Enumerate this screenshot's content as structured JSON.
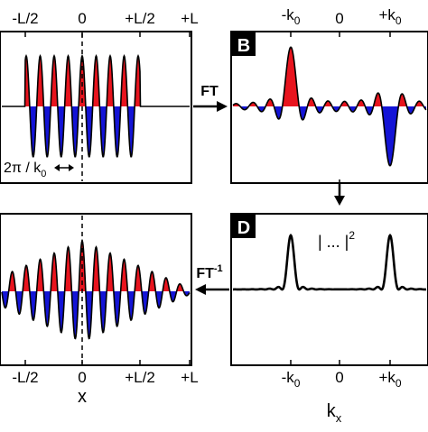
{
  "colors": {
    "positive": "#e8141e",
    "negative": "#1414d6",
    "line": "#000000"
  },
  "top_axis_left": {
    "minus_half": "-L/2",
    "zero": "0",
    "plus_half": "+L/2",
    "plus_full": "+L"
  },
  "top_axis_right": {
    "minus_k0": "-k",
    "minus_k0_sub": "0",
    "zero": "0",
    "plus_k0": "+k",
    "plus_k0_sub": "0"
  },
  "bottom_axis_left": {
    "minus_half": "-L/2",
    "zero": "0",
    "plus_half": "+L/2",
    "plus_full": "+L",
    "xlabel": "x"
  },
  "bottom_axis_right": {
    "minus_k0": "-k",
    "minus_k0_sub": "0",
    "zero": "0",
    "plus_k0": "+k",
    "plus_k0_sub": "0",
    "xlabel": "k",
    "xlabel_sub": "x"
  },
  "panels": {
    "B": "B",
    "D": "D"
  },
  "arrows": {
    "ft": "FT",
    "ift": "FT",
    "ift_sup": "-1"
  },
  "annotations": {
    "period_prefix": "2π / k",
    "period_sub": "0",
    "modulus": "| ... |",
    "modulus_sup": "2"
  }
}
